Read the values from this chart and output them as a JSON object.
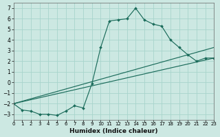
{
  "xlabel": "Humidex (Indice chaleur)",
  "bg_color": "#cce8e2",
  "line_color": "#1a6b5a",
  "grid_color": "#a8d4cc",
  "xlim": [
    0,
    23
  ],
  "ylim": [
    -3.5,
    7.5
  ],
  "xticks": [
    0,
    1,
    2,
    3,
    4,
    5,
    6,
    7,
    8,
    9,
    10,
    11,
    12,
    13,
    14,
    15,
    16,
    17,
    18,
    19,
    20,
    21,
    22,
    23
  ],
  "yticks": [
    -3,
    -2,
    -1,
    0,
    1,
    2,
    3,
    4,
    5,
    6,
    7
  ],
  "line1_x": [
    0,
    1,
    2,
    3,
    4,
    5,
    6,
    7,
    8,
    9,
    10,
    11,
    12,
    13,
    14,
    15,
    16,
    17,
    18,
    19,
    20,
    21,
    22,
    23
  ],
  "line1_y": [
    -2.0,
    -2.6,
    -2.7,
    -3.0,
    -3.0,
    -3.1,
    -2.7,
    -2.2,
    -2.4,
    -0.1,
    3.3,
    5.8,
    5.9,
    6.0,
    7.0,
    5.9,
    5.5,
    5.3,
    4.0,
    3.3,
    2.6,
    2.0,
    2.3,
    2.3
  ],
  "line2_x": [
    0,
    23
  ],
  "line2_y": [
    -2.0,
    2.3
  ],
  "line3_x": [
    0,
    23
  ],
  "line3_y": [
    -2.0,
    3.3
  ],
  "tick_fontsize_x": 5.0,
  "tick_fontsize_y": 5.5,
  "xlabel_fontsize": 6.5
}
